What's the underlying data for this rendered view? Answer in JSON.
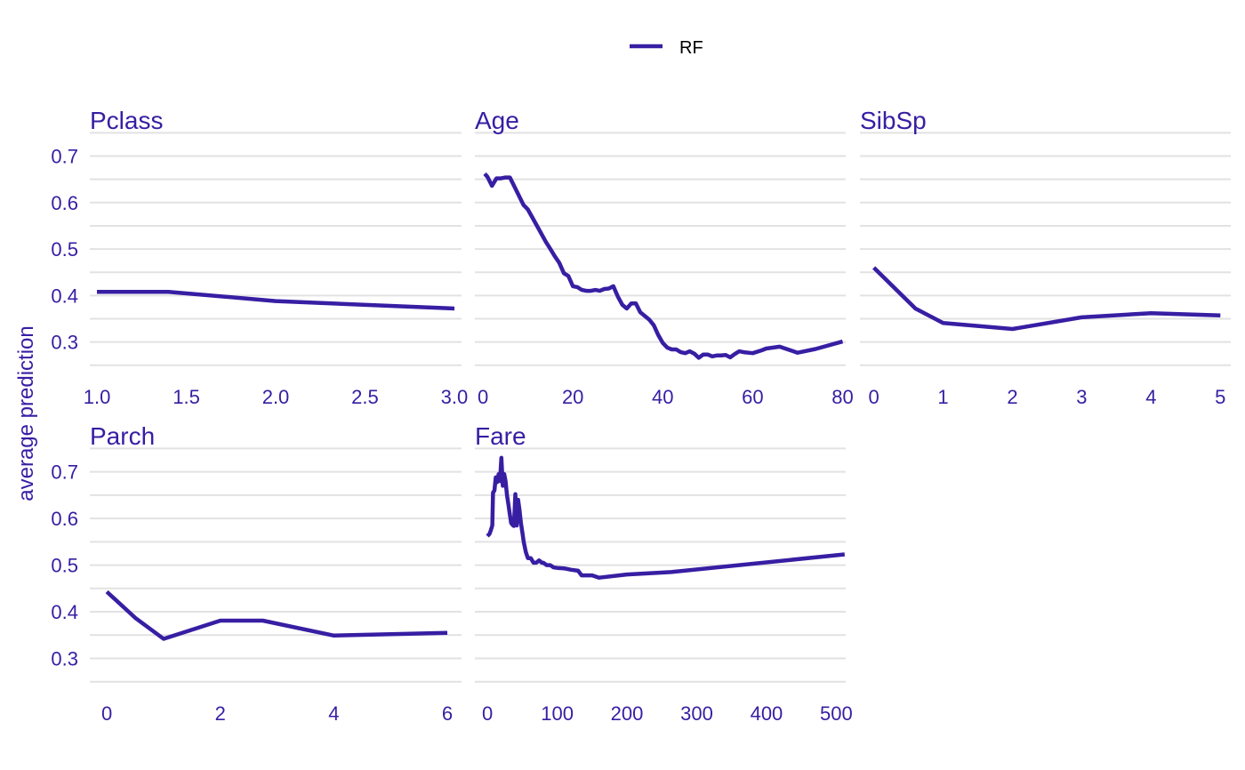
{
  "chart_data": {
    "type": "line",
    "ylabel": "average prediction",
    "legend": {
      "position": "top",
      "entries": [
        "RF"
      ]
    },
    "series_color": "#371ea3",
    "text_color": "#371ea3",
    "grid_color": "#e2e2e2",
    "grid": true,
    "panels": [
      {
        "title": "Pclass",
        "xlim": [
          0.96,
          3.04
        ],
        "xticks": [
          1.0,
          1.5,
          2.0,
          2.5,
          3.0
        ],
        "xtick_labels": [
          "1.0",
          "1.5",
          "2.0",
          "2.5",
          "3.0"
        ],
        "ylim": [
          0.24,
          0.745
        ],
        "yticks": [
          0.3,
          0.4,
          0.5,
          0.6,
          0.7
        ],
        "ytick_labels": [
          "0.3",
          "0.4",
          "0.5",
          "0.6",
          "0.7"
        ],
        "series": [
          {
            "name": "RF",
            "x": [
              1.0,
              1.4,
              2.0,
              3.0
            ],
            "y": [
              0.408,
              0.408,
              0.388,
              0.372
            ]
          }
        ]
      },
      {
        "title": "Age",
        "xlim": [
          -1.8,
          80.7
        ],
        "xticks": [
          0,
          20,
          40,
          60,
          80
        ],
        "xtick_labels": [
          "0",
          "20",
          "40",
          "60",
          "80"
        ],
        "ylim": [
          0.24,
          0.745
        ],
        "yticks": [
          0.3,
          0.4,
          0.5,
          0.6,
          0.7
        ],
        "ytick_labels": [],
        "series": [
          {
            "name": "RF",
            "x": [
              0.4,
              1,
              2,
              3,
              4,
              5,
              6,
              8,
              9,
              10,
              12,
              14,
              15,
              16,
              17,
              18,
              19,
              20,
              21,
              22,
              23,
              24,
              25,
              26,
              27,
              28,
              29,
              30,
              31,
              32,
              33,
              34,
              35,
              36,
              37,
              38,
              39,
              40,
              41,
              42,
              43,
              44,
              45,
              46,
              47,
              48,
              49,
              50,
              51,
              52,
              53,
              54,
              55,
              56,
              57,
              58,
              60,
              62,
              63,
              66,
              70,
              74,
              80
            ],
            "y": [
              0.662,
              0.655,
              0.636,
              0.652,
              0.652,
              0.654,
              0.654,
              0.615,
              0.595,
              0.585,
              0.55,
              0.515,
              0.5,
              0.484,
              0.47,
              0.448,
              0.442,
              0.42,
              0.418,
              0.412,
              0.41,
              0.41,
              0.412,
              0.41,
              0.414,
              0.415,
              0.42,
              0.398,
              0.38,
              0.372,
              0.383,
              0.383,
              0.364,
              0.356,
              0.348,
              0.336,
              0.315,
              0.298,
              0.288,
              0.284,
              0.284,
              0.278,
              0.276,
              0.28,
              0.275,
              0.266,
              0.273,
              0.273,
              0.269,
              0.271,
              0.271,
              0.272,
              0.267,
              0.274,
              0.28,
              0.278,
              0.276,
              0.282,
              0.286,
              0.29,
              0.277,
              0.285,
              0.301
            ]
          }
        ]
      },
      {
        "title": "SibSp",
        "xlim": [
          -0.2,
          5.15
        ],
        "xticks": [
          0,
          1,
          2,
          3,
          4,
          5
        ],
        "xtick_labels": [
          "0",
          "1",
          "2",
          "3",
          "4",
          "5"
        ],
        "ylim": [
          0.24,
          0.745
        ],
        "yticks": [
          0.3,
          0.4,
          0.5,
          0.6,
          0.7
        ],
        "ytick_labels": [],
        "series": [
          {
            "name": "RF",
            "x": [
              0,
              0.6,
              1,
              2,
              3,
              4,
              5
            ],
            "y": [
              0.46,
              0.372,
              0.341,
              0.328,
              0.353,
              0.362,
              0.357
            ]
          }
        ]
      },
      {
        "title": "Parch",
        "xlim": [
          -0.3,
          6.25
        ],
        "xticks": [
          0,
          2,
          4,
          6
        ],
        "xtick_labels": [
          "0",
          "2",
          "4",
          "6"
        ],
        "ylim": [
          0.24,
          0.745
        ],
        "yticks": [
          0.3,
          0.4,
          0.5,
          0.6,
          0.7
        ],
        "ytick_labels": [
          "0.3",
          "0.4",
          "0.5",
          "0.6",
          "0.7"
        ],
        "series": [
          {
            "name": "RF",
            "x": [
              0,
              0.5,
              1,
              2,
              2.75,
              4,
              6
            ],
            "y": [
              0.443,
              0.387,
              0.342,
              0.381,
              0.381,
              0.349,
              0.355
            ]
          }
        ]
      },
      {
        "title": "Fare",
        "xlim": [
          -18,
          513.5
        ],
        "xticks": [
          0,
          100,
          200,
          300,
          400,
          500
        ],
        "xtick_labels": [
          "0",
          "100",
          "200",
          "300",
          "400",
          "500"
        ],
        "ylim": [
          0.24,
          0.745
        ],
        "yticks": [
          0.3,
          0.4,
          0.5,
          0.6,
          0.7
        ],
        "ytick_labels": [],
        "series": [
          {
            "name": "RF",
            "x": [
              0,
              3,
              5,
              7,
              8,
              10,
              12,
              14,
              16,
              18,
              20,
              22,
              24,
              26,
              28,
              30,
              32,
              34,
              36,
              38,
              40,
              42,
              44,
              46,
              48,
              50,
              52,
              55,
              58,
              62,
              66,
              70,
              74,
              78,
              80,
              85,
              90,
              95,
              100,
              110,
              120,
              130,
              135,
              150,
              160,
              200,
              263,
              512
            ],
            "y": [
              0.562,
              0.567,
              0.575,
              0.585,
              0.655,
              0.66,
              0.688,
              0.678,
              0.695,
              0.68,
              0.73,
              0.67,
              0.695,
              0.68,
              0.65,
              0.63,
              0.61,
              0.59,
              0.586,
              0.584,
              0.652,
              0.585,
              0.64,
              0.618,
              0.59,
              0.57,
              0.55,
              0.528,
              0.515,
              0.515,
              0.505,
              0.505,
              0.51,
              0.505,
              0.505,
              0.5,
              0.5,
              0.495,
              0.494,
              0.493,
              0.49,
              0.488,
              0.478,
              0.478,
              0.473,
              0.48,
              0.485,
              0.523
            ]
          }
        ]
      }
    ]
  }
}
